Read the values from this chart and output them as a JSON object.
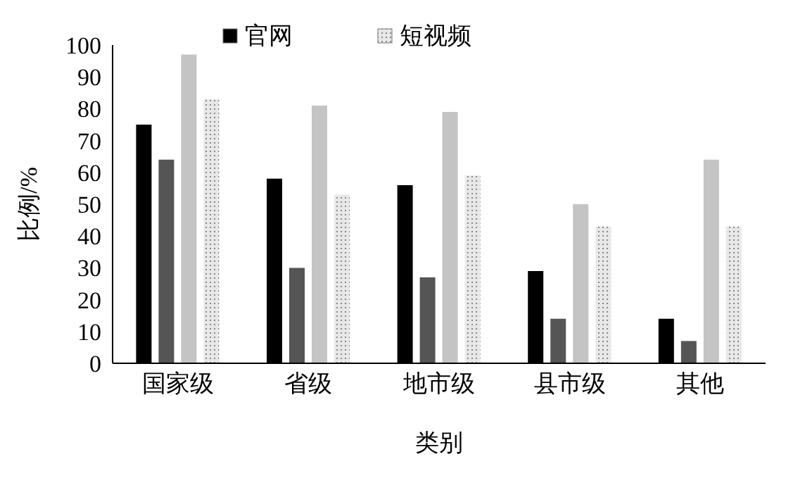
{
  "chart_data": {
    "type": "bar",
    "xlabel": "类别",
    "ylabel": "比例/%",
    "categories": [
      "国家级",
      "省级",
      "地市级",
      "县市级",
      "其他"
    ],
    "series": [
      {
        "name": "官网",
        "color": "#000000",
        "values": [
          75,
          58,
          56,
          29,
          14
        ]
      },
      {
        "color": "#555555",
        "values": [
          64,
          30,
          27,
          14,
          7
        ]
      },
      {
        "color": "#c4c4c4",
        "values": [
          97,
          81,
          79,
          50,
          64
        ]
      },
      {
        "name": "短视频",
        "color": "#e8e8e8",
        "values": [
          83,
          53,
          59,
          43,
          43
        ]
      }
    ],
    "ylim": [
      0,
      100
    ],
    "yticks": [
      0,
      10,
      20,
      30,
      40,
      50,
      60,
      70,
      80,
      90,
      100
    ],
    "grid": false,
    "legend": "top"
  }
}
